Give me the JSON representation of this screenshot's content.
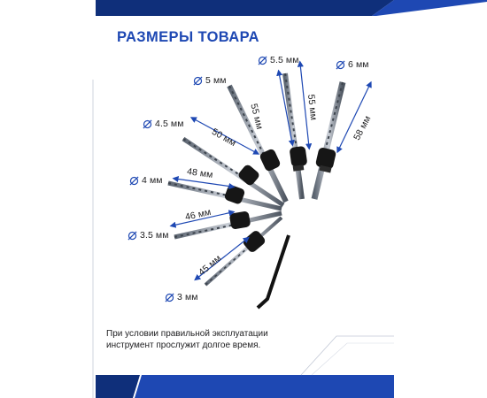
{
  "header": {
    "title": "РАЗМЕРЫ ТОВАРА"
  },
  "diameters": [
    "5.5 мм",
    "6 мм",
    "5 мм",
    "4.5 мм",
    "4 мм",
    "3.5 мм",
    "3 мм"
  ],
  "lengths": [
    "55 мм",
    "55 мм",
    "58 мм",
    "50 мм",
    "48 мм",
    "46 мм",
    "45 мм"
  ],
  "note": {
    "line1": "При условии правильной эксплуатации",
    "line2": "инструмент прослужит долгое время."
  },
  "colors": {
    "brand_blue": "#1e48b3",
    "dark_blue": "#0f2f7a",
    "steel": "#7d8794",
    "black": "#121212"
  }
}
